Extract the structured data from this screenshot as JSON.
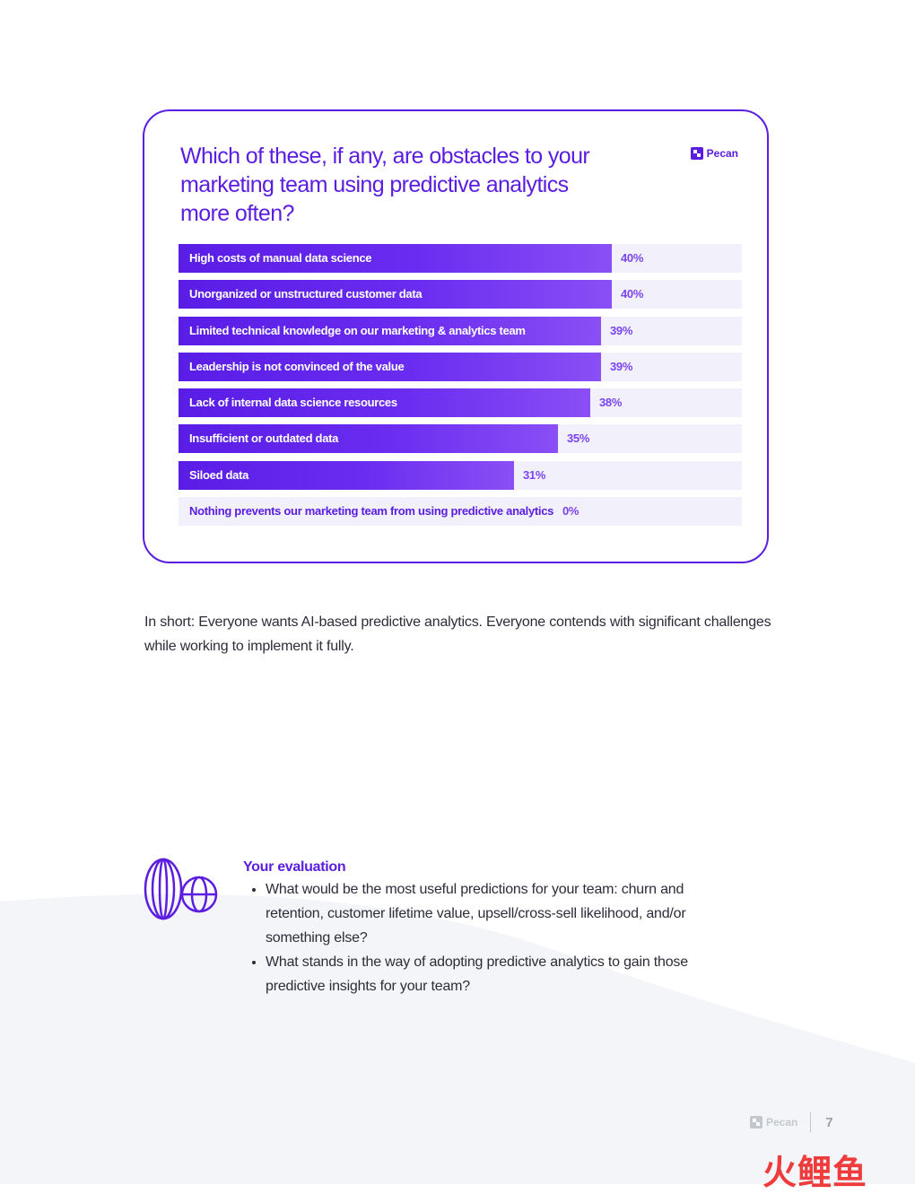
{
  "chart_data": {
    "type": "bar",
    "orientation": "horizontal",
    "title": "Which of these, if any, are obstacles to your marketing team using predictive analytics more often?",
    "categories": [
      "High costs of manual data science",
      "Unorganized or unstructured customer data",
      "Limited technical knowledge on our marketing & analytics team",
      "Leadership is not convinced of the value",
      "Lack of internal data science resources",
      "Insufficient or outdated data",
      "Siloed data",
      "Nothing prevents our marketing team from using predictive analytics"
    ],
    "values": [
      40,
      40,
      39,
      39,
      38,
      35,
      31,
      0
    ],
    "value_labels": [
      "40%",
      "40%",
      "39%",
      "39%",
      "38%",
      "35%",
      "31%",
      "0%"
    ],
    "xlim": [
      0,
      52
    ],
    "grid": false
  },
  "card": {
    "logo_text": "Pecan"
  },
  "summary": "In short: Everyone wants AI-based predictive analytics. Everyone contends with significant challenges while working to implement it fully.",
  "evaluation": {
    "title": "Your evaluation",
    "items": [
      "What would be the most useful predictions for your team: churn and retention, customer lifetime value, upsell/cross-sell likelihood, and/or something else?",
      "What stands in the way of adopting predictive analytics to gain those predictive insights for your team?"
    ]
  },
  "footer": {
    "logo_text": "Pecan",
    "page_number": "7"
  },
  "watermark": "火鲤鱼",
  "colors": {
    "accent": "#5b1ee0",
    "bar_track": "#f1f0fb",
    "value_text": "#7a45ee"
  }
}
